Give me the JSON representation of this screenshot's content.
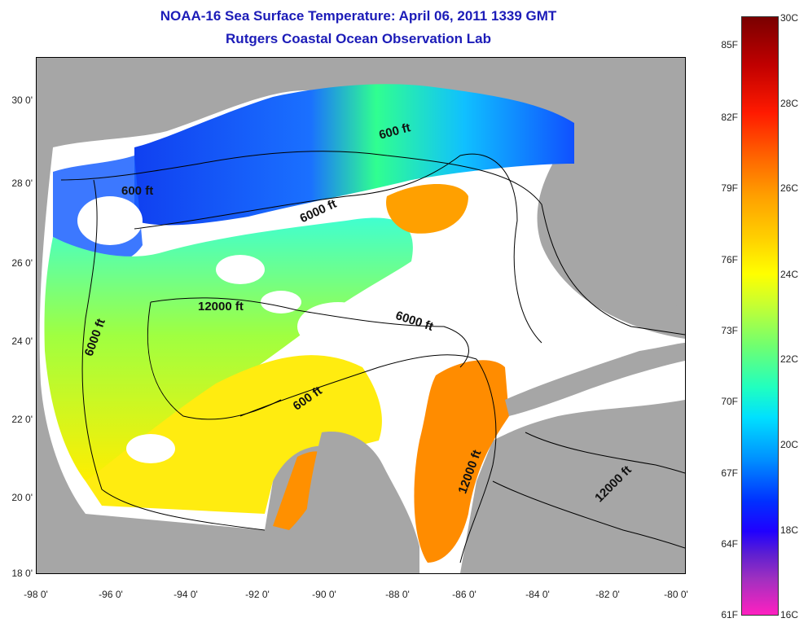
{
  "header": {
    "title_line1": "NOAA-16 Sea Surface Temperature:  April 06, 2011 1339 GMT",
    "title_line2": "Rutgers Coastal Ocean Observation Lab"
  },
  "map": {
    "lat_labels": [
      "30 0'",
      "28 0'",
      "26 0'",
      "24 0'",
      "22 0'",
      "20 0'",
      "18 0'"
    ],
    "lon_labels": [
      "-98 0'",
      "-96 0'",
      "-94 0'",
      "-92 0'",
      "-90 0'",
      "-88 0'",
      "-86 0'",
      "-84 0'",
      "-82 0'",
      "-80 0'"
    ],
    "contour_labels": [
      "600 ft",
      "600 ft",
      "6000 ft",
      "12000 ft",
      "6000 ft",
      "6000 ft",
      "600 ft",
      "12000 ft",
      "12000 ft"
    ],
    "colors": {
      "land": "#a6a6a6",
      "cloud": "#ffffff",
      "contour": "#000000"
    }
  },
  "colorbar": {
    "fahrenheit_labels": [
      "85F",
      "82F",
      "79F",
      "76F",
      "73F",
      "70F",
      "67F",
      "64F",
      "61F"
    ],
    "celsius_labels": [
      "30C",
      "28C",
      "26C",
      "24C",
      "22C",
      "20C",
      "18C",
      "16C"
    ]
  }
}
